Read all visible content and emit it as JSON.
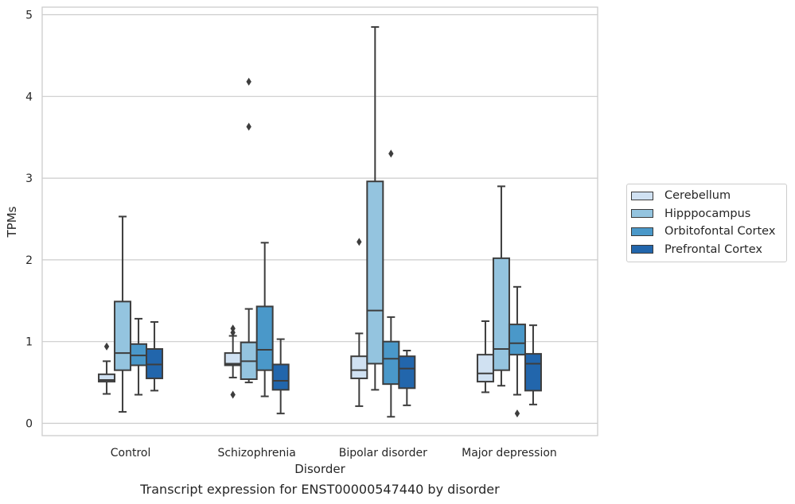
{
  "chart_data": {
    "type": "box",
    "title": "",
    "xlabel": "Disorder",
    "ylabel": "TPMs",
    "ylim": [
      -0.15,
      5.1
    ],
    "yticks": [
      0,
      1,
      2,
      3,
      4,
      5
    ],
    "grid": "horizontal",
    "legend_position": "right",
    "categories": [
      "Control",
      "Schizophrenia",
      "Bipolar disorder",
      "Major depression"
    ],
    "series": [
      {
        "name": "Cerebellum",
        "color": "#d0e1f2",
        "boxes": [
          {
            "whisker_low": 0.36,
            "q1": 0.51,
            "median": 0.53,
            "q3": 0.6,
            "whisker_high": 0.76,
            "outliers": [
              0.94
            ]
          },
          {
            "whisker_low": 0.56,
            "q1": 0.71,
            "median": 0.73,
            "q3": 0.86,
            "whisker_high": 1.07,
            "outliers": [
              0.35,
              1.11,
              1.16
            ]
          },
          {
            "whisker_low": 0.21,
            "q1": 0.55,
            "median": 0.65,
            "q3": 0.82,
            "whisker_high": 1.1,
            "outliers": [
              2.22
            ]
          },
          {
            "whisker_low": 0.38,
            "q1": 0.51,
            "median": 0.61,
            "q3": 0.84,
            "whisker_high": 1.25,
            "outliers": []
          }
        ]
      },
      {
        "name": "Hipppocampus",
        "color": "#94c4df",
        "boxes": [
          {
            "whisker_low": 0.14,
            "q1": 0.65,
            "median": 0.86,
            "q3": 1.49,
            "whisker_high": 2.53,
            "outliers": []
          },
          {
            "whisker_low": 0.5,
            "q1": 0.54,
            "median": 0.76,
            "q3": 0.99,
            "whisker_high": 1.4,
            "outliers": [
              3.63,
              4.18
            ]
          },
          {
            "whisker_low": 0.41,
            "q1": 0.73,
            "median": 1.38,
            "q3": 2.96,
            "whisker_high": 4.85,
            "outliers": []
          },
          {
            "whisker_low": 0.46,
            "q1": 0.65,
            "median": 0.91,
            "q3": 2.02,
            "whisker_high": 2.9,
            "outliers": []
          }
        ]
      },
      {
        "name": "Orbitofontal Cortex",
        "color": "#4a98c9",
        "boxes": [
          {
            "whisker_low": 0.35,
            "q1": 0.71,
            "median": 0.83,
            "q3": 0.97,
            "whisker_high": 1.28,
            "outliers": []
          },
          {
            "whisker_low": 0.33,
            "q1": 0.65,
            "median": 0.9,
            "q3": 1.43,
            "whisker_high": 2.21,
            "outliers": []
          },
          {
            "whisker_low": 0.08,
            "q1": 0.48,
            "median": 0.79,
            "q3": 1.0,
            "whisker_high": 1.3,
            "outliers": [
              3.3
            ]
          },
          {
            "whisker_low": 0.35,
            "q1": 0.84,
            "median": 0.98,
            "q3": 1.21,
            "whisker_high": 1.67,
            "outliers": [
              0.12
            ]
          }
        ]
      },
      {
        "name": "Prefrontal Cortex",
        "color": "#2266ac",
        "boxes": [
          {
            "whisker_low": 0.4,
            "q1": 0.55,
            "median": 0.72,
            "q3": 0.91,
            "whisker_high": 1.24,
            "outliers": []
          },
          {
            "whisker_low": 0.12,
            "q1": 0.41,
            "median": 0.52,
            "q3": 0.72,
            "whisker_high": 1.03,
            "outliers": []
          },
          {
            "whisker_low": 0.22,
            "q1": 0.43,
            "median": 0.67,
            "q3": 0.82,
            "whisker_high": 0.89,
            "outliers": []
          },
          {
            "whisker_low": 0.23,
            "q1": 0.4,
            "median": 0.73,
            "q3": 0.85,
            "whisker_high": 1.2,
            "outliers": []
          }
        ]
      }
    ],
    "caption": "Transcript expression for ENST00000547440 by disorder"
  }
}
